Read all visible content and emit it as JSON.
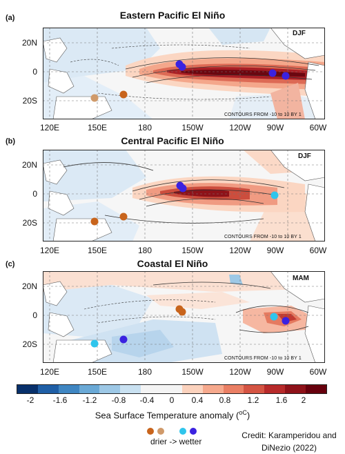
{
  "panels": [
    {
      "letter": "(a)",
      "title": "Eastern Pacific El Niño",
      "season": "DJF"
    },
    {
      "letter": "(b)",
      "title": "Central Pacific El Niño",
      "season": "DJF"
    },
    {
      "letter": "(c)",
      "title": "Coastal El Niño",
      "season": "MAM"
    }
  ],
  "lat_labels": [
    "20N",
    "0",
    "20S"
  ],
  "lon_labels": [
    "120E",
    "150E",
    "180",
    "150W",
    "120W",
    "90W",
    "60W"
  ],
  "contours_note": "CONTOURS FROM -10 to 10 BY 1",
  "colorbar": {
    "title": "Sea Surface Temperature anomaly (",
    "unit": "oC",
    "title_end": ")",
    "labels": [
      "-2",
      "-1.6",
      "-1.2",
      "-0.8",
      "-0.4",
      "0",
      "0.4",
      "0.8",
      "1.2",
      "1.6",
      "2"
    ],
    "colors": [
      "#08306b",
      "#1f5fa6",
      "#3f86c2",
      "#6aa9d6",
      "#9dc8e6",
      "#c9e1f1",
      "#f4f4f4",
      "#f4f4f4",
      "#fbd2bd",
      "#f6a98d",
      "#ea7f64",
      "#d45443",
      "#b72a2a",
      "#8e1219",
      "#67000d"
    ]
  },
  "legend": {
    "text": "drier -> wetter",
    "colors": [
      "#c8641c",
      "#d09a6a",
      "#2fc5ec",
      "#3b22e0"
    ]
  },
  "credit": {
    "line1": "Credit: Karamperidou and",
    "line2": "DiNezio (2022)"
  },
  "dots": {
    "drier": "#c8641c",
    "drier_light": "#d09a6a",
    "wetter_light": "#2fc5ec",
    "wetter": "#3b22e0"
  }
}
